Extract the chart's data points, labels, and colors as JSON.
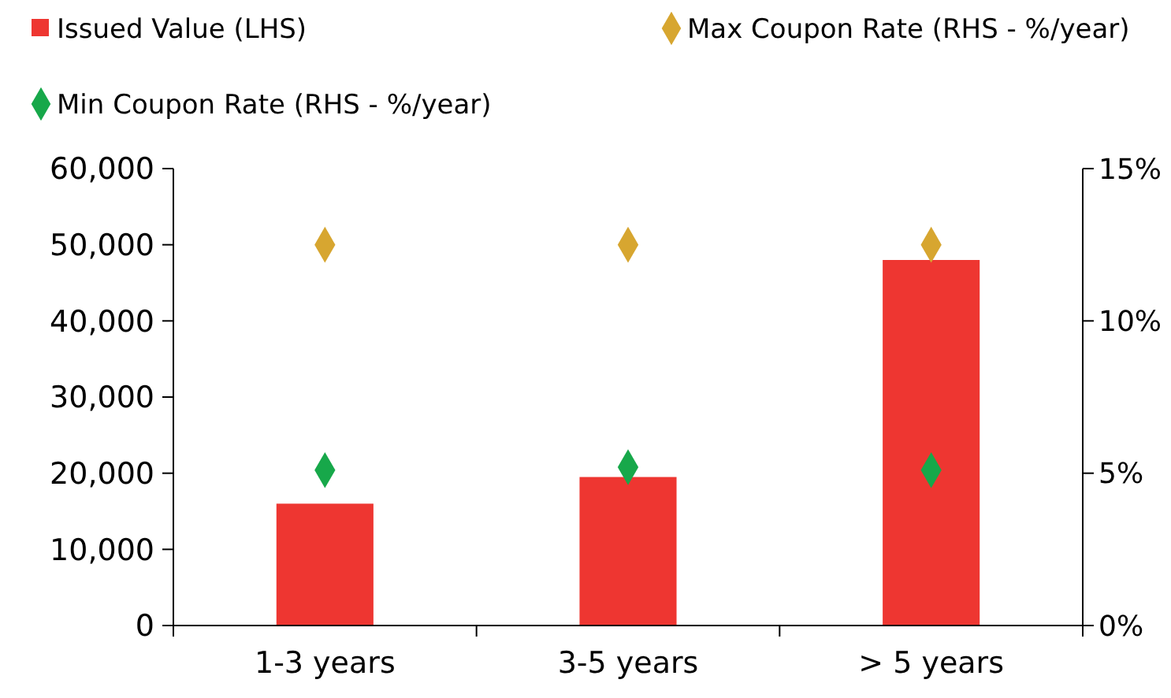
{
  "chart_data": {
    "type": "bar",
    "categories": [
      "1-3 years",
      "3-5 years",
      "> 5 years"
    ],
    "series": [
      {
        "name": "Issued Value (LHS)",
        "color": "#ee3631",
        "values": [
          16000,
          19500,
          48000
        ]
      },
      {
        "name": "Max Coupon Rate (RHS - %/year)",
        "color": "#d7a630",
        "type": "scatter",
        "axis": "y2",
        "values": [
          12.5,
          12.5,
          12.5
        ]
      },
      {
        "name": "Min Coupon Rate (RHS - %/year)",
        "color": "#17a84a",
        "type": "scatter",
        "axis": "y2",
        "values": [
          5.1,
          5.2,
          5.1
        ]
      }
    ],
    "ylim": [
      0,
      60000
    ],
    "yticks": [
      {
        "value": 0,
        "label": "0"
      },
      {
        "value": 10000,
        "label": "10,000"
      },
      {
        "value": 20000,
        "label": "20,000"
      },
      {
        "value": 30000,
        "label": "30,000"
      },
      {
        "value": 40000,
        "label": "40,000"
      },
      {
        "value": 50000,
        "label": "50,000"
      },
      {
        "value": 60000,
        "label": "60,000"
      }
    ],
    "y2lim": [
      0,
      15
    ],
    "y2ticks": [
      {
        "value": 0,
        "label": "0%"
      },
      {
        "value": 5,
        "label": "5%"
      },
      {
        "value": 10,
        "label": "10%"
      },
      {
        "value": 15,
        "label": "15%"
      }
    ],
    "marker": "diamond",
    "legend": "top",
    "grid": false
  }
}
